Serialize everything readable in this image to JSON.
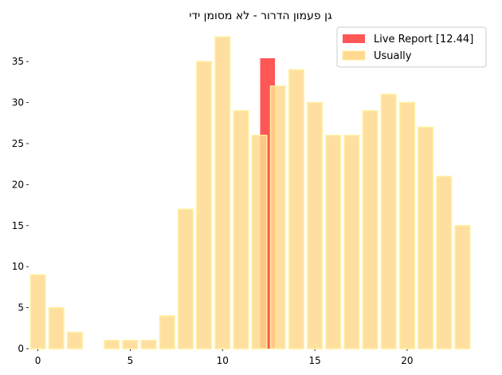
{
  "chart_data": {
    "type": "bar",
    "title": "גן פעמון הדרור - לא מסומן ידי",
    "xlabel": "",
    "ylabel": "",
    "xlim": [
      -0.5,
      23.5
    ],
    "ylim": [
      0,
      39
    ],
    "xticks": [
      0,
      5,
      10,
      15,
      20
    ],
    "yticks": [
      0,
      5,
      10,
      15,
      20,
      25,
      30,
      35
    ],
    "grid": false,
    "legend_position": "top-right",
    "series": [
      {
        "name": "Live Report [12.44]",
        "color": "#ff4d4d",
        "x": [
          12.44
        ],
        "values": [
          35.4
        ]
      },
      {
        "name": "Usually",
        "color": "#ffd98f",
        "edge_color": "#fff0a0",
        "x": [
          0,
          1,
          2,
          3,
          4,
          5,
          6,
          7,
          8,
          9,
          10,
          11,
          12,
          13,
          14,
          15,
          16,
          17,
          18,
          19,
          20,
          21,
          22,
          23
        ],
        "values": [
          9,
          5,
          2,
          0,
          1,
          1,
          1,
          4,
          17,
          35,
          38,
          29,
          26,
          32,
          34,
          30,
          26,
          26,
          29,
          31,
          30,
          27,
          21,
          15
        ]
      }
    ]
  }
}
